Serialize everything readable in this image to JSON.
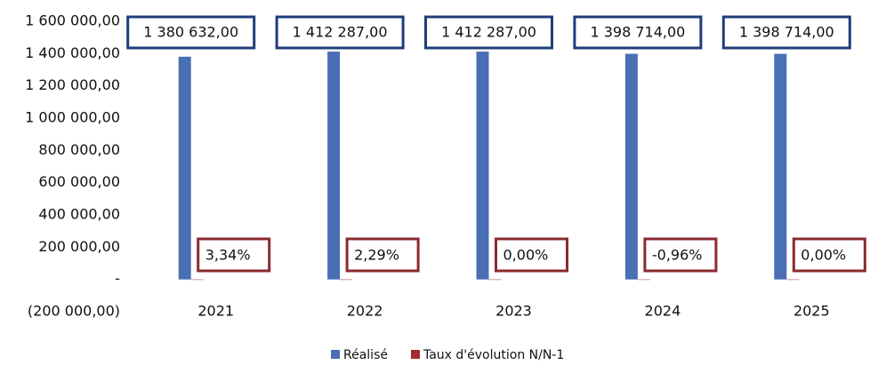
{
  "chart_data": {
    "type": "bar",
    "categories": [
      "2021",
      "2022",
      "2023",
      "2024",
      "2025"
    ],
    "series": [
      {
        "name": "Réalisé",
        "color": "#4a6fb5",
        "values": [
          1380632,
          1412287,
          1412287,
          1398714,
          1398714
        ],
        "value_labels": [
          "1 380 632,00",
          "1 412 287,00",
          "1 412 287,00",
          "1 398 714,00",
          "1 398 714,00"
        ]
      },
      {
        "name": "Taux d'évolution N/N-1",
        "color": "#a32a30",
        "values": [
          3.34,
          2.29,
          0.0,
          -0.96,
          0.0
        ],
        "value_labels": [
          "3,34%",
          "2,29%",
          "0,00%",
          "-0,96%",
          "0,00%"
        ]
      }
    ],
    "ylim": [
      -200000,
      1600000
    ],
    "yticks": [
      {
        "value": -200000,
        "label": "(200 000,00)"
      },
      {
        "value": 0,
        "label": "-"
      },
      {
        "value": 200000,
        "label": "200 000,00"
      },
      {
        "value": 400000,
        "label": "400 000,00"
      },
      {
        "value": 600000,
        "label": "600 000,00"
      },
      {
        "value": 800000,
        "label": "800 000,00"
      },
      {
        "value": 1000000,
        "label": "1 000 000,00"
      },
      {
        "value": 1200000,
        "label": "1 200 000,00"
      },
      {
        "value": 1400000,
        "label": "1 400 000,00"
      },
      {
        "value": 1600000,
        "label": "1 600 000,00"
      }
    ],
    "grid": false,
    "legend": "bottom"
  }
}
